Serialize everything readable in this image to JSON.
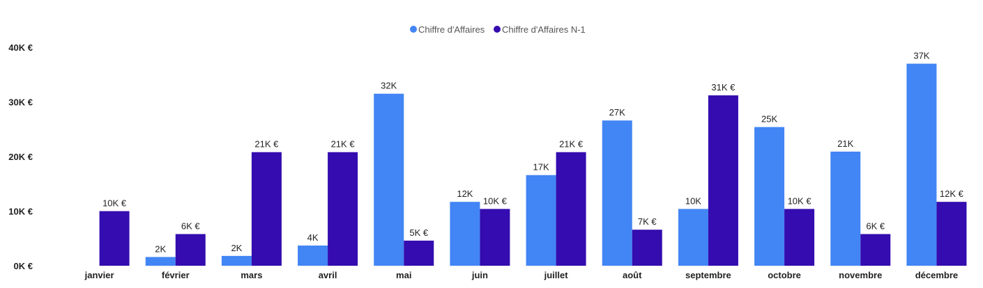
{
  "chart_data": {
    "type": "bar",
    "title": "",
    "xlabel": "",
    "ylabel": "",
    "ylim": [
      0,
      40000
    ],
    "yticks": [
      0,
      10000,
      20000,
      30000,
      40000
    ],
    "ytick_labels": [
      "0K €",
      "10K €",
      "20K €",
      "30K €",
      "40K €"
    ],
    "grid": false,
    "legend_position": "top-center",
    "categories": [
      "janvier",
      "février",
      "mars",
      "avril",
      "mai",
      "juin",
      "juillet",
      "août",
      "septembre",
      "octobre",
      "novembre",
      "décembre"
    ],
    "series": [
      {
        "name": "Chiffre d'Affaires",
        "color": "#4285F4",
        "values": [
          0,
          1600,
          1800,
          3700,
          31500,
          11700,
          16600,
          26600,
          10400,
          25400,
          20900,
          37000
        ],
        "labels": [
          "",
          "2K",
          "2K",
          "4K",
          "32K",
          "12K",
          "17K",
          "27K",
          "10K",
          "25K",
          "21K",
          "37K"
        ]
      },
      {
        "name": "Chiffre d'Affaires N-1",
        "color": "#340CAF",
        "values": [
          10000,
          5800,
          20800,
          20800,
          4600,
          10400,
          20800,
          6600,
          31200,
          10400,
          5800,
          11700
        ],
        "labels": [
          "10K €",
          "6K €",
          "21K €",
          "21K €",
          "5K €",
          "10K €",
          "21K €",
          "7K €",
          "31K €",
          "10K €",
          "6K €",
          "12K €"
        ]
      }
    ]
  }
}
